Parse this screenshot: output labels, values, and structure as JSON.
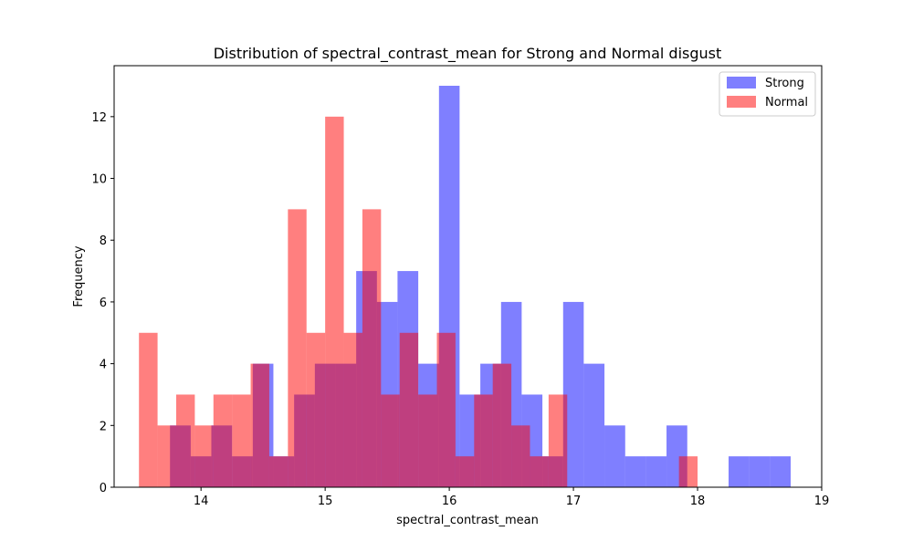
{
  "chart_data": {
    "type": "histogram",
    "title": "Distribution of spectral_contrast_mean for Strong and Normal disgust",
    "xlabel": "spectral_contrast_mean",
    "ylabel": "Frequency",
    "xlim": [
      13.3,
      19.0
    ],
    "ylim": [
      0,
      13.65
    ],
    "xticks": [
      14,
      15,
      16,
      17,
      18,
      19
    ],
    "yticks": [
      0,
      2,
      4,
      6,
      8,
      10,
      12
    ],
    "grid": false,
    "legend_position": "top-right",
    "series": [
      {
        "name": "Strong",
        "color": "#0000ff",
        "opacity": 0.5,
        "bin_edges": [
          13.75,
          13.917,
          14.083,
          14.25,
          14.417,
          14.583,
          14.75,
          14.917,
          15.083,
          15.25,
          15.417,
          15.583,
          15.75,
          15.917,
          16.083,
          16.25,
          16.417,
          16.583,
          16.75,
          16.917,
          17.083,
          17.25,
          17.417,
          17.583,
          17.75,
          17.917,
          18.083,
          18.25,
          18.417,
          18.583,
          18.75
        ],
        "counts": [
          2,
          1,
          2,
          1,
          4,
          1,
          3,
          4,
          4,
          7,
          6,
          7,
          4,
          13,
          3,
          4,
          6,
          3,
          1,
          6,
          4,
          2,
          1,
          1,
          2,
          0,
          0,
          1,
          1,
          1
        ]
      },
      {
        "name": "Normal",
        "color": "#ff0000",
        "opacity": 0.5,
        "bin_edges": [
          13.5,
          13.65,
          13.8,
          13.95,
          14.1,
          14.25,
          14.4,
          14.55,
          14.7,
          14.85,
          15.0,
          15.15,
          15.3,
          15.45,
          15.6,
          15.75,
          15.9,
          16.05,
          16.2,
          16.35,
          16.5,
          16.65,
          16.8,
          16.95,
          17.1,
          17.25,
          17.4,
          17.55,
          17.7,
          17.85,
          18.0
        ],
        "counts": [
          5,
          2,
          3,
          2,
          3,
          3,
          4,
          1,
          9,
          5,
          12,
          5,
          9,
          3,
          5,
          3,
          5,
          1,
          3,
          4,
          2,
          1,
          3,
          0,
          0,
          0,
          0,
          0,
          0,
          1
        ]
      }
    ]
  }
}
